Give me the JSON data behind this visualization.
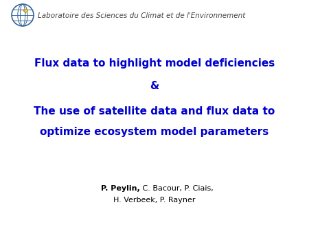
{
  "background_color": "#ffffff",
  "title_line1": "Flux data to highlight model deficiencies",
  "title_line2": "&",
  "title_line3": "The use of satellite data and flux data to",
  "title_line4": "optimize ecosystem model parameters",
  "title_color": "#0000CC",
  "title_fontsize": 11,
  "title_fontstyle": "bold",
  "author_line1_bold": "P. Peylin,",
  "author_line1_normal": " C. Bacour, P. Ciais,",
  "author_line2": "H. Verbeek, P. Rayner",
  "author_fontsize": 8,
  "author_color": "#000000",
  "header_text": "Laboratoire des Sciences du Climat et de l'Environnement",
  "header_fontsize": 7.5,
  "header_color": "#444444",
  "header_style": "italic",
  "logo_color_outer": "#336699",
  "logo_color_inner": "#336699",
  "logo_bird_color": "#cc9900"
}
